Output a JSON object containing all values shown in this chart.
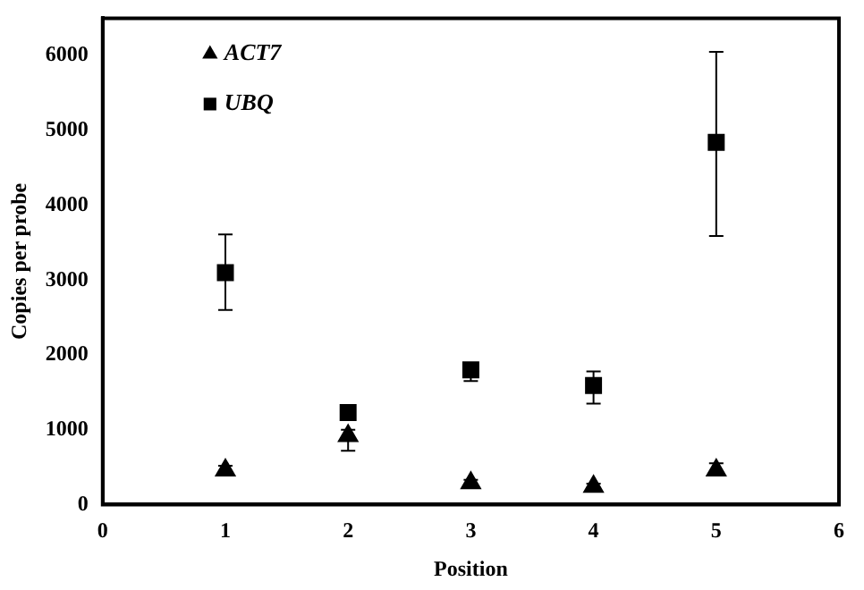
{
  "chart_data": {
    "type": "scatter",
    "xlabel": "Position",
    "ylabel": "Copies per probe",
    "xlim": [
      0,
      6
    ],
    "xticks": [
      0,
      1,
      2,
      3,
      4,
      5,
      6
    ],
    "ylim": [
      0,
      6500
    ],
    "yticks": [
      0,
      1000,
      2000,
      3000,
      4000,
      5000,
      6000
    ],
    "grid": false,
    "legend": "top left",
    "x": [
      1,
      2,
      3,
      4,
      5
    ],
    "series": [
      {
        "name": "ACT7",
        "color": "#000000",
        "marker": "triangle",
        "values": [
          460,
          920,
          290,
          240,
          460
        ],
        "errors": [
          [
            400,
            520
          ],
          [
            720,
            1000
          ],
          [
            240,
            330
          ],
          [
            200,
            280
          ],
          [
            400,
            550
          ]
        ]
      },
      {
        "name": "UBQ",
        "color": "#000000",
        "marker": "square",
        "values": [
          3100,
          1230,
          1800,
          1590,
          4840
        ],
        "errors": [
          [
            2600,
            3610
          ],
          null,
          [
            1650,
            1800
          ],
          [
            1350,
            1780
          ],
          [
            3590,
            6050
          ]
        ]
      }
    ]
  }
}
